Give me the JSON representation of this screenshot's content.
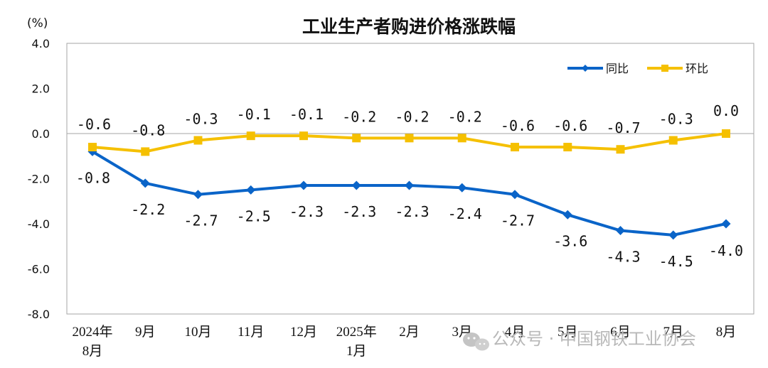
{
  "chart_data": {
    "type": "line",
    "title": "工业生产者购进价格涨跌幅",
    "unit_label": "(%)",
    "ylim": [
      -8.0,
      4.0
    ],
    "yticks": [
      "4.0",
      "2.0",
      "0.0",
      "-2.0",
      "-4.0",
      "-6.0",
      "-8.0"
    ],
    "ytick_values": [
      4,
      2,
      0,
      -2,
      -4,
      -6,
      -8
    ],
    "categories": [
      [
        "2024年",
        "8月"
      ],
      [
        "9月"
      ],
      [
        "10月"
      ],
      [
        "11月"
      ],
      [
        "12月"
      ],
      [
        "2025年",
        "1月"
      ],
      [
        "2月"
      ],
      [
        "3月"
      ],
      [
        "4月"
      ],
      [
        "5月"
      ],
      [
        "6月"
      ],
      [
        "7月"
      ],
      [
        "8月"
      ]
    ],
    "series": [
      {
        "name": "同比",
        "color": "#0a64c8",
        "marker": "diamond",
        "values": [
          -0.8,
          -2.2,
          -2.7,
          -2.5,
          -2.3,
          -2.3,
          -2.3,
          -2.4,
          -2.7,
          -3.6,
          -4.3,
          -4.5,
          -4.0
        ],
        "labels": [
          "-0.8",
          "-2.2",
          "-2.7",
          "-2.5",
          "-2.3",
          "-2.3",
          "-2.3",
          "-2.4",
          "-2.7",
          "-3.6",
          "-4.3",
          "-4.5",
          "-4.0"
        ]
      },
      {
        "name": "环比",
        "color": "#f5c000",
        "marker": "square",
        "values": [
          -0.6,
          -0.8,
          -0.3,
          -0.1,
          -0.1,
          -0.2,
          -0.2,
          -0.2,
          -0.6,
          -0.6,
          -0.7,
          -0.3,
          0.0
        ],
        "labels": [
          "-0.6",
          "-0.8",
          "-0.3",
          "-0.1",
          "-0.1",
          "-0.2",
          "-0.2",
          "-0.2",
          "-0.6",
          "-0.6",
          "-0.7",
          "-0.3",
          "0.0"
        ]
      }
    ],
    "legend_position": "top-right",
    "grid": false
  },
  "watermark": {
    "text": "公众号 · 中国钢铁工业协会",
    "icon": "wechat-icon"
  }
}
